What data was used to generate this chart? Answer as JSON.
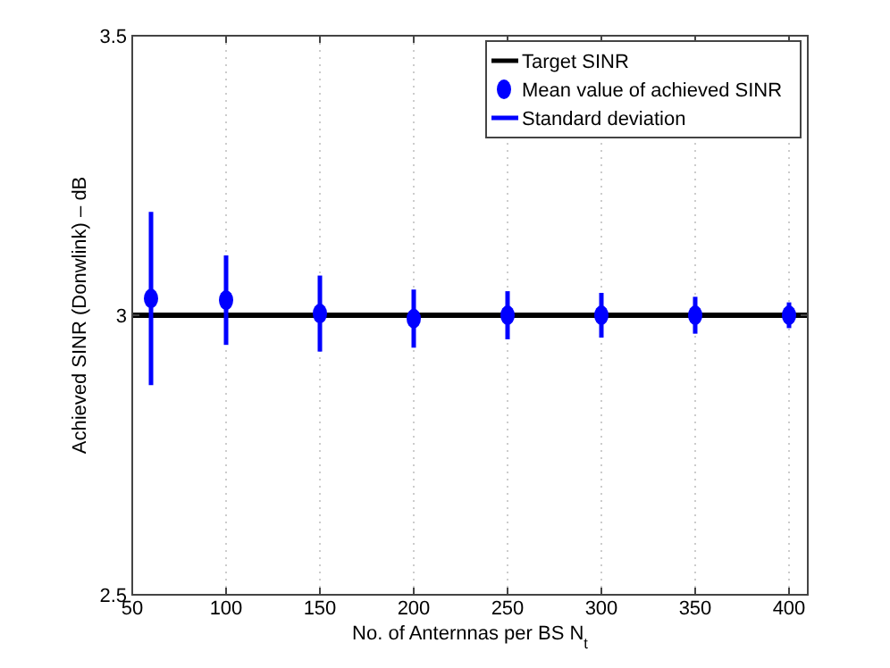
{
  "chart_data": {
    "type": "scatter",
    "xlabel": "No. of Anternnas per BS N$_{t}$",
    "ylabel": "Achieved SINR (Donwlink) – dB",
    "xlim": [
      50,
      410
    ],
    "xticks": [
      50,
      100,
      150,
      200,
      250,
      300,
      350,
      400
    ],
    "ylim": [
      2.5,
      3.5
    ],
    "yticks": [
      2.5,
      3,
      3.5
    ],
    "grid": "x",
    "legend": "top right",
    "annotations": [
      "Standard deviation"
    ],
    "series": [
      {
        "name": "Target SINR",
        "type": "line",
        "color": "#000000",
        "x": [
          50,
          410
        ],
        "values": [
          3,
          3
        ],
        "line_style": "solid"
      },
      {
        "name": "Mean value of achieved SINR",
        "color": "#0000ff",
        "marker": "circle",
        "x": [
          60,
          100,
          150,
          200,
          250,
          300,
          350,
          400
        ],
        "values": [
          3.03,
          3.027,
          3.003,
          2.994,
          3.0,
          3.0,
          3.0,
          3.0
        ],
        "errors": [
          0.155,
          0.08,
          0.068,
          0.052,
          0.043,
          0.04,
          0.033,
          0.023
        ]
      }
    ]
  }
}
